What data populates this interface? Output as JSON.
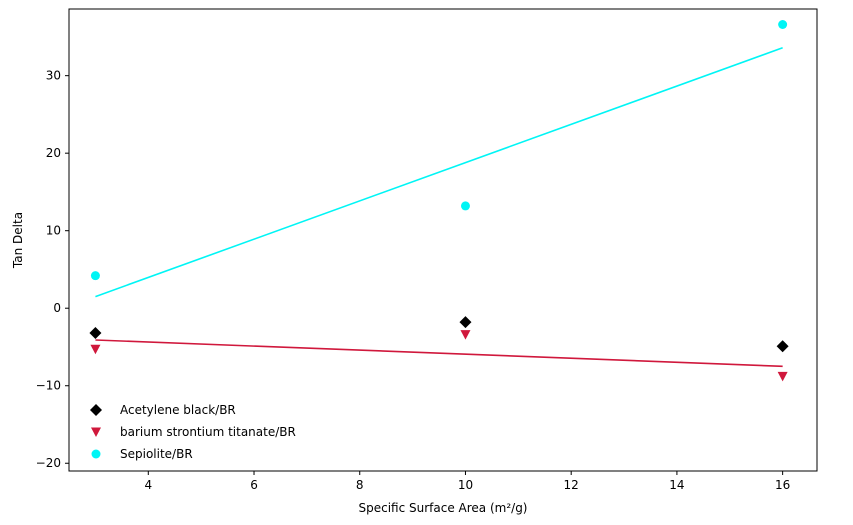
{
  "chart_data": {
    "type": "scatter",
    "title": "",
    "xlabel": "Specific Surface Area (m²/g)",
    "ylabel": "Tan Delta",
    "xlim": [
      2.5,
      16.65
    ],
    "ylim": [
      -21.0,
      38.6
    ],
    "xticks": [
      4,
      6,
      8,
      10,
      12,
      14,
      16
    ],
    "yticks": [
      -20,
      -10,
      0,
      10,
      20,
      30
    ],
    "grid": false,
    "legend_position": "lower-left",
    "series": [
      {
        "name": "Acetylene black/BR",
        "marker": "diamond",
        "color": "#000000",
        "points": [
          {
            "x": 3,
            "y": -3.2
          },
          {
            "x": 10,
            "y": -1.8
          },
          {
            "x": 16,
            "y": -4.9
          }
        ]
      },
      {
        "name": "barium strontium titanate/BR",
        "marker": "triangle-down",
        "color": "#d0183c",
        "points": [
          {
            "x": 3,
            "y": -5.3
          },
          {
            "x": 10,
            "y": -3.4
          },
          {
            "x": 16,
            "y": -8.8
          }
        ],
        "trendline": {
          "x": [
            3,
            16
          ],
          "y": [
            -4.1,
            -7.5
          ]
        }
      },
      {
        "name": "Sepiolite/BR",
        "marker": "circle",
        "color": "#00f5f5",
        "points": [
          {
            "x": 3,
            "y": 4.2
          },
          {
            "x": 10,
            "y": 13.2
          },
          {
            "x": 16,
            "y": 36.6
          }
        ],
        "trendline": {
          "x": [
            3,
            16
          ],
          "y": [
            1.5,
            33.6
          ]
        }
      }
    ]
  }
}
